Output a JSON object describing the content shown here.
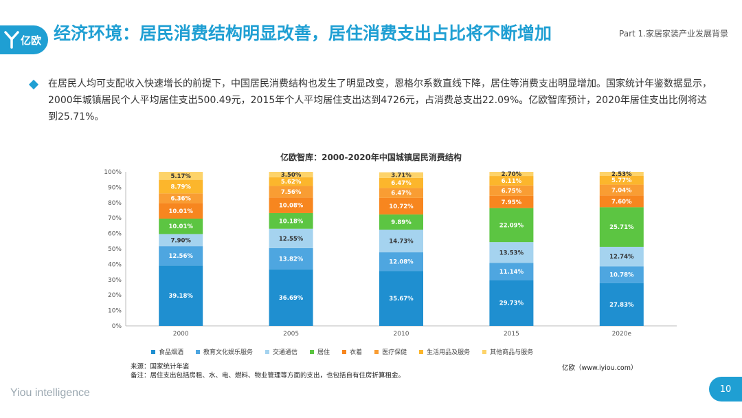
{
  "header": {
    "logo_text": "亿欧",
    "title": "经济环境：居民消费结构明显改善，居住消费支出占比将不断增加",
    "part_label": "Part 1.家居家装产业发展背景"
  },
  "intro": "在居民人均可支配收入快速增长的前提下，中国居民消费结构也发生了明显改变，恩格尔系数直线下降，居住等消费支出明显增加。国家统计年鉴数据显示，2000年城镇居民个人平均居住支出500.49元，2015年个人平均居住支出达到4726元，占消费总支出22.09%。亿欧智库预计，2020年居住支出比例将达到25.71%。",
  "chart_data": {
    "type": "bar",
    "stacked": true,
    "title": "亿欧智库：2000-2020年中国城镇居民消费结构",
    "categories": [
      "2000",
      "2005",
      "2010",
      "2015",
      "2020e"
    ],
    "ylim": [
      0,
      100
    ],
    "yticks": [
      "0%",
      "10%",
      "20%",
      "30%",
      "40%",
      "50%",
      "60%",
      "70%",
      "80%",
      "90%",
      "100%"
    ],
    "grid": false,
    "legend_position": "bottom",
    "series": [
      {
        "name": "食品烟酒",
        "color": "#1f8fd0",
        "values": [
          39.18,
          36.69,
          35.67,
          29.73,
          27.83
        ],
        "labels": [
          "39.18%",
          "36.69%",
          "35.67%",
          "29.73%",
          "27.83%"
        ]
      },
      {
        "name": "教育文化娱乐服务",
        "color": "#4ea6e0",
        "values": [
          12.56,
          13.82,
          12.08,
          11.14,
          10.78
        ],
        "labels": [
          "12.56%",
          "13.82%",
          "12.08%",
          "11.14%",
          "10.78%"
        ]
      },
      {
        "name": "交通通信",
        "color": "#a5d3ef",
        "values": [
          7.9,
          12.55,
          14.73,
          13.53,
          12.74
        ],
        "labels": [
          "7.90%",
          "12.55%",
          "14.73%",
          "13.53%",
          "12.74%"
        ]
      },
      {
        "name": "居住",
        "color": "#5cc542",
        "values": [
          10.01,
          10.18,
          9.89,
          22.09,
          25.71
        ],
        "labels": [
          "10.01%",
          "10.18%",
          "9.89%",
          "22.09%",
          "25.71%"
        ]
      },
      {
        "name": "衣着",
        "color": "#f7861f",
        "values": [
          10.01,
          10.08,
          10.72,
          7.95,
          7.6
        ],
        "labels": [
          "10.01%",
          "10.08%",
          "10.72%",
          "7.95%",
          "7.60%"
        ]
      },
      {
        "name": "医疗保健",
        "color": "#f99d33",
        "values": [
          6.36,
          7.56,
          6.47,
          6.75,
          7.04
        ],
        "labels": [
          "6.36%",
          "7.56%",
          "6.47%",
          "6.75%",
          "7.04%"
        ]
      },
      {
        "name": "生活用品及服务",
        "color": "#fcb62c",
        "values": [
          8.79,
          5.62,
          6.47,
          6.11,
          5.77
        ],
        "labels": [
          "8.79%",
          "5.62%",
          "6.47%",
          "6.11%",
          "5.77%"
        ]
      },
      {
        "name": "其他商品与服务",
        "color": "#fdd36a",
        "values": [
          5.17,
          3.5,
          3.71,
          2.7,
          2.53
        ],
        "labels": [
          "5.17%",
          "3.50%",
          "3.71%",
          "2.70%",
          "2.53%"
        ]
      }
    ]
  },
  "footer": {
    "source_line1": "来源：国家统计年鉴",
    "source_line2": "备注：居住支出包括房租、水、电、燃料、物业管理等方面的支出，也包括自有住房折算租金。",
    "site": "亿欧（www.iyiou.com）",
    "brand": "Yiou intelligence",
    "page_number": "10"
  }
}
